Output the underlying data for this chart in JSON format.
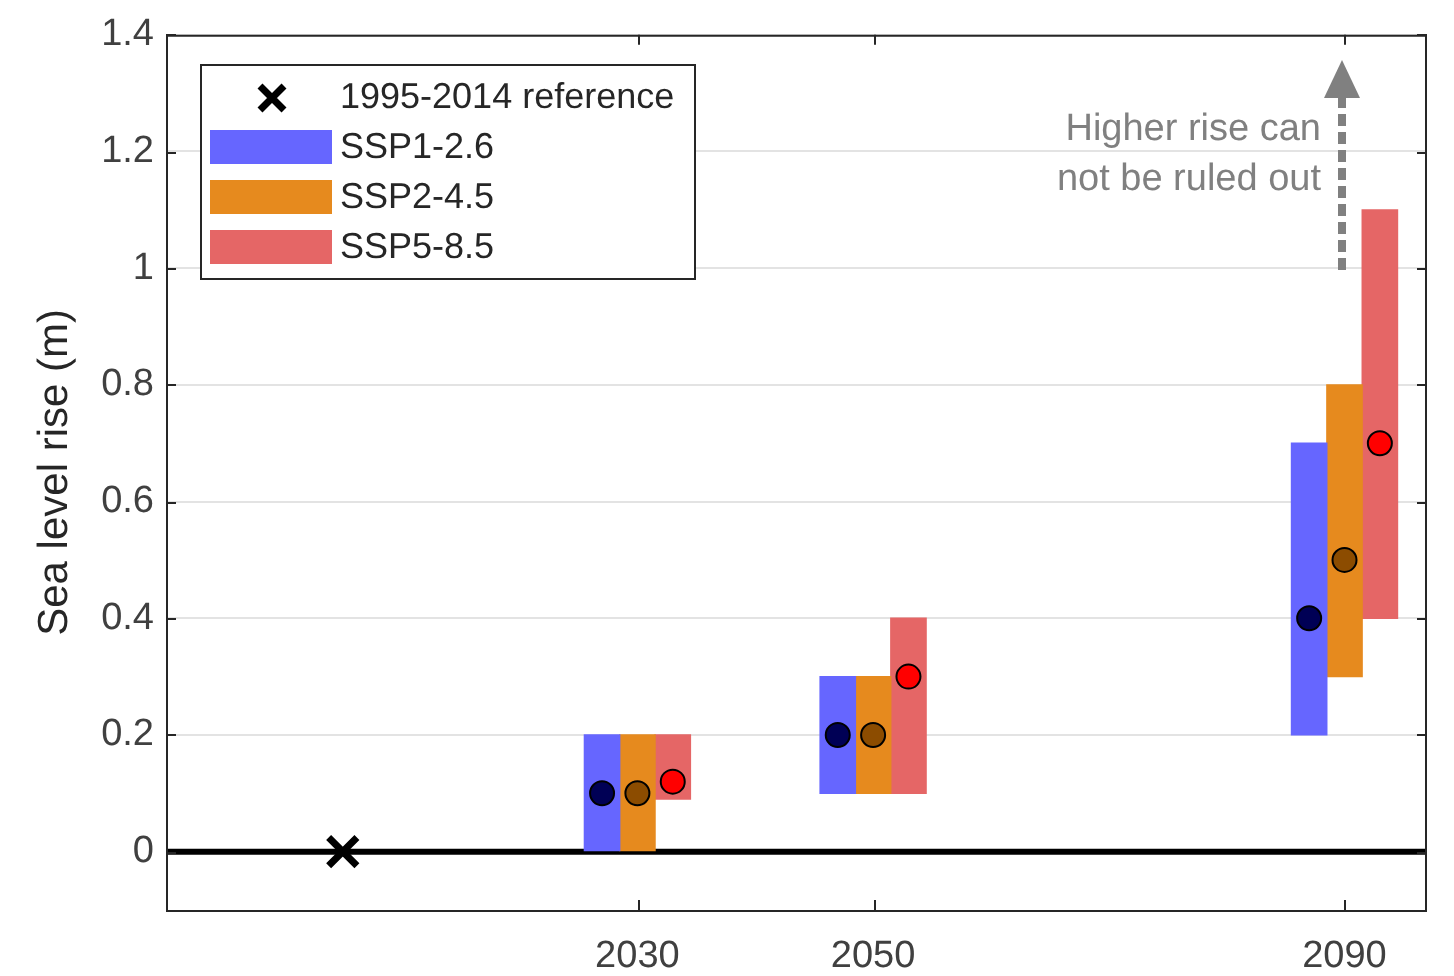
{
  "chart_data": {
    "type": "bar",
    "series": [
      {
        "type": "scatter",
        "name": "1995-2014 reference",
        "x": [
          2005
        ],
        "values": [
          0
        ],
        "color": "#000000",
        "marker": "cross"
      },
      {
        "name": "SSP1-2.6",
        "color": "#6666ff",
        "x": [
          2027,
          2047,
          2087
        ],
        "base": [
          0,
          0.1,
          0.2
        ],
        "values": [
          0.2,
          0.2,
          0.5
        ]
      },
      {
        "name": "SSP2-4.5",
        "color": "#e68a1e",
        "x": [
          2030,
          2050,
          2090
        ],
        "base": [
          0,
          0.1,
          0.3
        ],
        "values": [
          0.2,
          0.2,
          0.5
        ]
      },
      {
        "name": "SSP5-8.5",
        "color": "#e56666",
        "x": [
          2033,
          2053,
          2093
        ],
        "base": [
          0.09,
          0.1,
          0.4
        ],
        "values": [
          0.11,
          0.3,
          0.7
        ]
      },
      {
        "type": "scatter",
        "color": "#000055",
        "x": [
          2027,
          2047,
          2087
        ],
        "values": [
          0.1,
          0.2,
          0.4
        ],
        "marker": "circle"
      },
      {
        "type": "scatter",
        "color": "#8c4c00",
        "x": [
          2030,
          2050,
          2090
        ],
        "values": [
          0.1,
          0.2,
          0.5
        ],
        "marker": "circle"
      },
      {
        "type": "scatter",
        "color": "#ff0000",
        "x": [
          2033,
          2053,
          2093
        ],
        "values": [
          0.12,
          0.3,
          0.7
        ],
        "marker": "circle"
      }
    ],
    "ylabel": "Sea level rise (m)",
    "xlim": [
      1990,
      2097
    ],
    "xticks": [
      2030,
      2050,
      2090
    ],
    "ylim": [
      -0.1,
      1.4
    ],
    "yticks": [
      0,
      0.2,
      0.4,
      0.6,
      0.8,
      1,
      1.2,
      1.4
    ],
    "ref_lines": [
      {
        "axis": "y",
        "value": 0,
        "color": "#000000"
      }
    ],
    "annotations": [
      "Higher rise can\nnot be ruled out"
    ],
    "grid": "y",
    "legend": "top left"
  }
}
